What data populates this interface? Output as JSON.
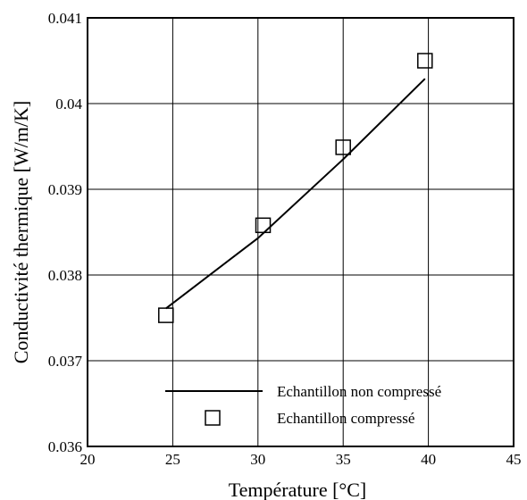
{
  "chart_data": {
    "type": "line",
    "xlabel": "Température [°C]",
    "ylabel": "Conductivité thermique [W/m/K]",
    "xlim": [
      20,
      45
    ],
    "ylim": [
      0.036,
      0.041
    ],
    "x_ticks": [
      "20",
      "25",
      "30",
      "35",
      "40",
      "45"
    ],
    "y_ticks": [
      "0.036",
      "0.037",
      "0.038",
      "0.039",
      "0.04",
      "0.041"
    ],
    "grid": true,
    "legend_position": "bottom-right",
    "series": [
      {
        "name": "Echantillon non compressé",
        "style": "line",
        "color": "#000000",
        "points": [
          [
            24.6,
            0.03761
          ],
          [
            30.0,
            0.03843
          ],
          [
            35.0,
            0.03935
          ],
          [
            39.8,
            0.04029
          ]
        ]
      },
      {
        "name": "Echantillon compressé",
        "style": "open-square",
        "color": "#000000",
        "points": [
          [
            24.6,
            0.03753
          ],
          [
            30.3,
            0.03858
          ],
          [
            35.0,
            0.03949
          ],
          [
            39.8,
            0.0405
          ]
        ]
      }
    ]
  }
}
